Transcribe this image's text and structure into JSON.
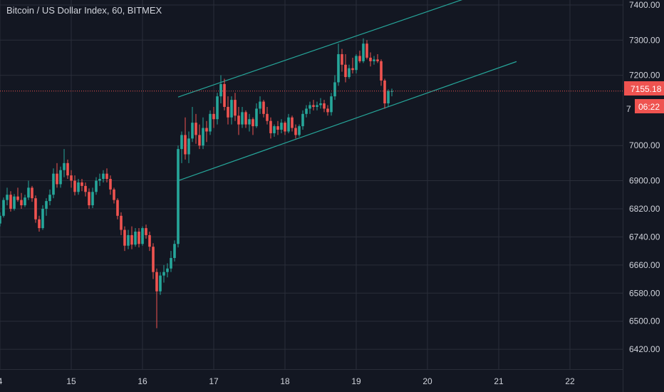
{
  "header": {
    "title": "Bitcoin / US Dollar Index, 60, BITMEX"
  },
  "colors": {
    "background": "#131722",
    "grid": "#2a2e39",
    "up": "#26a69a",
    "down": "#ef5350",
    "channel": "#26a69a",
    "text": "#d1d4dc",
    "price_line": "#ef5350"
  },
  "chart_data": {
    "type": "candlestick",
    "title": "Bitcoin / US Dollar Index, 60, BITMEX",
    "y_ticks": [
      "7400.00",
      "7300.00",
      "7200.00",
      "7000.00",
      "6900.00",
      "6820.00",
      "6740.00",
      "6660.00",
      "6580.00",
      "6500.00",
      "6420.00"
    ],
    "y_range": [
      6400,
      7420
    ],
    "x_ticks": [
      "4",
      "15",
      "16",
      "17",
      "18",
      "19",
      "20",
      "21",
      "22"
    ],
    "x_range_days": [
      14.0,
      22.6
    ],
    "last_price": "7155.18",
    "last_price_partial": "7",
    "countdown": "06:22",
    "channel_lines": [
      {
        "name": "upper",
        "points": [
          [
            16.5,
            7138
          ],
          [
            20.7,
            7430
          ]
        ]
      },
      {
        "name": "lower",
        "points": [
          [
            16.5,
            6900
          ],
          [
            21.25,
            7239
          ]
        ]
      }
    ],
    "candles": [
      [
        13.95,
        6755,
        6782,
        6745,
        6778
      ],
      [
        14.0,
        6778,
        6810,
        6770,
        6800
      ],
      [
        14.05,
        6800,
        6852,
        6795,
        6845
      ],
      [
        14.1,
        6845,
        6880,
        6830,
        6860
      ],
      [
        14.15,
        6860,
        6870,
        6812,
        6820
      ],
      [
        14.2,
        6820,
        6862,
        6815,
        6855
      ],
      [
        14.25,
        6855,
        6880,
        6840,
        6845
      ],
      [
        14.3,
        6845,
        6865,
        6820,
        6830
      ],
      [
        14.35,
        6830,
        6860,
        6825,
        6852
      ],
      [
        14.4,
        6852,
        6900,
        6845,
        6880
      ],
      [
        14.45,
        6880,
        6885,
        6840,
        6850
      ],
      [
        14.5,
        6850,
        6858,
        6780,
        6790
      ],
      [
        14.55,
        6790,
        6800,
        6755,
        6765
      ],
      [
        14.6,
        6765,
        6830,
        6760,
        6820
      ],
      [
        14.65,
        6820,
        6850,
        6800,
        6842
      ],
      [
        14.7,
        6842,
        6875,
        6830,
        6860
      ],
      [
        14.75,
        6860,
        6935,
        6850,
        6920
      ],
      [
        14.8,
        6920,
        6950,
        6880,
        6890
      ],
      [
        14.85,
        6890,
        6940,
        6880,
        6930
      ],
      [
        14.9,
        6930,
        6990,
        6910,
        6950
      ],
      [
        14.95,
        6950,
        6960,
        6905,
        6915
      ],
      [
        15.0,
        6915,
        6930,
        6880,
        6900
      ],
      [
        15.05,
        6900,
        6915,
        6858,
        6868
      ],
      [
        15.1,
        6868,
        6905,
        6860,
        6895
      ],
      [
        15.15,
        6895,
        6905,
        6870,
        6885
      ],
      [
        15.2,
        6885,
        6895,
        6855,
        6868
      ],
      [
        15.25,
        6868,
        6878,
        6820,
        6830
      ],
      [
        15.3,
        6830,
        6880,
        6822,
        6868
      ],
      [
        15.35,
        6868,
        6910,
        6860,
        6900
      ],
      [
        15.4,
        6900,
        6920,
        6885,
        6905
      ],
      [
        15.45,
        6905,
        6930,
        6895,
        6920
      ],
      [
        15.5,
        6920,
        6935,
        6895,
        6905
      ],
      [
        15.55,
        6905,
        6915,
        6860,
        6875
      ],
      [
        15.6,
        6875,
        6880,
        6835,
        6845
      ],
      [
        15.65,
        6845,
        6850,
        6790,
        6800
      ],
      [
        15.7,
        6800,
        6810,
        6745,
        6760
      ],
      [
        15.75,
        6760,
        6770,
        6700,
        6715
      ],
      [
        15.8,
        6715,
        6760,
        6705,
        6745
      ],
      [
        15.85,
        6745,
        6770,
        6705,
        6718
      ],
      [
        15.9,
        6718,
        6765,
        6712,
        6755
      ],
      [
        15.95,
        6755,
        6765,
        6710,
        6720
      ],
      [
        16.0,
        6720,
        6770,
        6715,
        6765
      ],
      [
        16.05,
        6765,
        6775,
        6735,
        6745
      ],
      [
        16.1,
        6745,
        6755,
        6700,
        6712
      ],
      [
        16.15,
        6712,
        6722,
        6620,
        6640
      ],
      [
        16.2,
        6640,
        6650,
        6480,
        6585
      ],
      [
        16.25,
        6585,
        6640,
        6575,
        6630
      ],
      [
        16.3,
        6630,
        6660,
        6610,
        6640
      ],
      [
        16.35,
        6640,
        6665,
        6625,
        6650
      ],
      [
        16.4,
        6650,
        6700,
        6640,
        6680
      ],
      [
        16.45,
        6680,
        6730,
        6670,
        6720
      ],
      [
        16.5,
        6720,
        7000,
        6710,
        6990
      ],
      [
        16.55,
        6990,
        7040,
        6950,
        7030
      ],
      [
        16.6,
        7030,
        7080,
        6960,
        6975
      ],
      [
        16.65,
        6975,
        7040,
        6950,
        7020
      ],
      [
        16.7,
        7020,
        7110,
        7010,
        7065
      ],
      [
        16.75,
        7065,
        7090,
        7005,
        7030
      ],
      [
        16.8,
        7030,
        7060,
        6990,
        7000
      ],
      [
        16.85,
        7000,
        7080,
        6990,
        7050
      ],
      [
        16.9,
        7050,
        7070,
        7010,
        7040
      ],
      [
        16.95,
        7040,
        7100,
        7030,
        7090
      ],
      [
        17.0,
        7090,
        7110,
        7050,
        7075
      ],
      [
        17.05,
        7075,
        7150,
        7060,
        7140
      ],
      [
        17.1,
        7140,
        7200,
        7120,
        7175
      ],
      [
        17.15,
        7175,
        7190,
        7100,
        7110
      ],
      [
        17.2,
        7110,
        7140,
        7060,
        7080
      ],
      [
        17.25,
        7080,
        7140,
        7060,
        7130
      ],
      [
        17.3,
        7130,
        7150,
        7070,
        7085
      ],
      [
        17.35,
        7085,
        7110,
        7030,
        7060
      ],
      [
        17.4,
        7060,
        7110,
        7050,
        7095
      ],
      [
        17.45,
        7095,
        7100,
        7050,
        7060
      ],
      [
        17.5,
        7060,
        7090,
        7040,
        7075
      ],
      [
        17.55,
        7075,
        7080,
        7030,
        7055
      ],
      [
        17.6,
        7055,
        7120,
        7050,
        7105
      ],
      [
        17.65,
        7105,
        7140,
        7090,
        7125
      ],
      [
        17.7,
        7125,
        7130,
        7080,
        7090
      ],
      [
        17.75,
        7090,
        7110,
        7060,
        7070
      ],
      [
        17.8,
        7070,
        7080,
        7020,
        7035
      ],
      [
        17.85,
        7035,
        7060,
        7025,
        7055
      ],
      [
        17.9,
        7055,
        7070,
        7030,
        7045
      ],
      [
        17.95,
        7045,
        7075,
        7035,
        7065
      ],
      [
        18.0,
        7065,
        7070,
        7030,
        7040
      ],
      [
        18.05,
        7040,
        7090,
        7035,
        7080
      ],
      [
        18.1,
        7080,
        7085,
        7040,
        7050
      ],
      [
        18.15,
        7050,
        7060,
        7020,
        7030
      ],
      [
        18.2,
        7030,
        7060,
        7025,
        7055
      ],
      [
        18.25,
        7055,
        7100,
        7045,
        7090
      ],
      [
        18.3,
        7090,
        7115,
        7080,
        7105
      ],
      [
        18.35,
        7105,
        7125,
        7090,
        7115
      ],
      [
        18.4,
        7115,
        7130,
        7100,
        7110
      ],
      [
        18.45,
        7110,
        7125,
        7100,
        7115
      ],
      [
        18.5,
        7115,
        7135,
        7105,
        7120
      ],
      [
        18.55,
        7120,
        7130,
        7095,
        7105
      ],
      [
        18.6,
        7105,
        7115,
        7085,
        7095
      ],
      [
        18.65,
        7095,
        7150,
        7085,
        7140
      ],
      [
        18.7,
        7140,
        7200,
        7130,
        7180
      ],
      [
        18.75,
        7180,
        7290,
        7170,
        7260
      ],
      [
        18.8,
        7260,
        7275,
        7210,
        7230
      ],
      [
        18.85,
        7230,
        7260,
        7180,
        7195
      ],
      [
        18.9,
        7195,
        7230,
        7190,
        7220
      ],
      [
        18.95,
        7220,
        7250,
        7205,
        7215
      ],
      [
        19.0,
        7215,
        7260,
        7205,
        7255
      ],
      [
        19.05,
        7255,
        7270,
        7235,
        7240
      ],
      [
        19.1,
        7240,
        7305,
        7235,
        7290
      ],
      [
        19.15,
        7290,
        7300,
        7245,
        7250
      ],
      [
        19.2,
        7250,
        7265,
        7225,
        7240
      ],
      [
        19.25,
        7240,
        7255,
        7230,
        7245
      ],
      [
        19.3,
        7245,
        7260,
        7235,
        7240
      ],
      [
        19.35,
        7240,
        7245,
        7170,
        7185
      ],
      [
        19.4,
        7185,
        7190,
        7105,
        7120
      ],
      [
        19.45,
        7120,
        7160,
        7110,
        7155
      ],
      [
        19.5,
        7155,
        7162,
        7140,
        7155
      ]
    ]
  }
}
